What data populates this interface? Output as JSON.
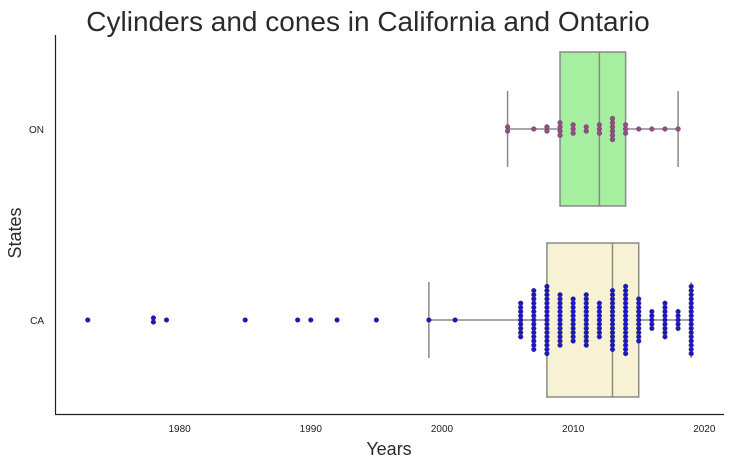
{
  "chart_data": {
    "type": "box+swarm",
    "orientation": "horizontal",
    "title": "Cylinders and cones in California and Ontario",
    "xlabel": "Years",
    "ylabel": "States",
    "xlim": [
      1970.5,
      2021.5
    ],
    "xticks": [
      1980,
      1990,
      2000,
      2010,
      2020
    ],
    "categories": [
      "ON",
      "CA"
    ],
    "grid": false,
    "boxes": [
      {
        "category": "ON",
        "whisker_low": 2005,
        "q1": 2009,
        "median": 2012,
        "q3": 2014,
        "whisker_high": 2018,
        "color": "#a6eea0"
      },
      {
        "category": "CA",
        "whisker_low": 1999,
        "q1": 2008,
        "median": 2013,
        "q3": 2015,
        "whisker_high": 2019,
        "color": "#f7f2d4"
      }
    ],
    "points": [
      {
        "category": "ON",
        "color": "#9a4a86",
        "counts": [
          [
            2005,
            2
          ],
          [
            2007,
            1
          ],
          [
            2008,
            2
          ],
          [
            2009,
            4
          ],
          [
            2010,
            3
          ],
          [
            2011,
            2
          ],
          [
            2012,
            3
          ],
          [
            2013,
            6
          ],
          [
            2014,
            3
          ],
          [
            2015,
            1
          ],
          [
            2016,
            1
          ],
          [
            2017,
            1
          ],
          [
            2018,
            1
          ]
        ]
      },
      {
        "category": "CA",
        "color": "#1a16c8",
        "counts": [
          [
            1973,
            1
          ],
          [
            1978,
            2
          ],
          [
            1979,
            1
          ],
          [
            1985,
            1
          ],
          [
            1989,
            1
          ],
          [
            1990,
            1
          ],
          [
            1992,
            1
          ],
          [
            1995,
            1
          ],
          [
            1999,
            1
          ],
          [
            2001,
            1
          ],
          [
            2006,
            9
          ],
          [
            2007,
            15
          ],
          [
            2008,
            17
          ],
          [
            2009,
            13
          ],
          [
            2010,
            11
          ],
          [
            2011,
            13
          ],
          [
            2012,
            9
          ],
          [
            2013,
            15
          ],
          [
            2014,
            17
          ],
          [
            2015,
            11
          ],
          [
            2016,
            5
          ],
          [
            2017,
            9
          ],
          [
            2018,
            5
          ],
          [
            2019,
            17
          ]
        ]
      }
    ]
  }
}
